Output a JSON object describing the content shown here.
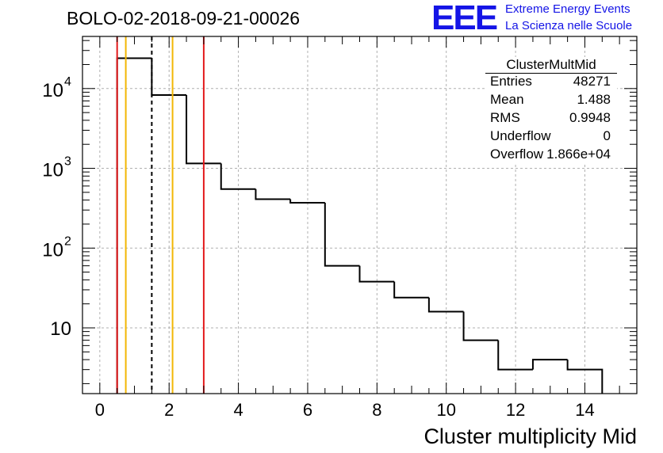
{
  "header": {
    "title": "BOLO-02-2018-09-21-00026",
    "logo_text": "EEE",
    "logo_line1": "Extreme Energy Events",
    "logo_line2": "La Scienza nelle Scuole"
  },
  "stats": {
    "title": "ClusterMultMid",
    "rows": [
      {
        "label": "Entries",
        "value": "48271"
      },
      {
        "label": "Mean",
        "value": "1.488"
      },
      {
        "label": "RMS",
        "value": "0.9948"
      },
      {
        "label": "Underflow",
        "value": "0"
      },
      {
        "label": "Overflow",
        "value": "1.866e+04"
      }
    ]
  },
  "colors": {
    "histogram": "#000000",
    "red_line": "#e31a1c",
    "orange_line": "#f2b705",
    "logo": "#1414e6",
    "grid": "#b0b0b0"
  },
  "chart_data": {
    "type": "histogram",
    "xlabel": "Cluster multiplicity Mid",
    "ylabel": "",
    "xlim": [
      -0.5,
      15.5
    ],
    "ylim": [
      1.5,
      45000
    ],
    "yscale": "log",
    "grid": true,
    "x_ticks": [
      0,
      2,
      4,
      6,
      8,
      10,
      12,
      14
    ],
    "y_ticks": [
      {
        "value": 10,
        "label": "10"
      },
      {
        "value": 100,
        "label": "10",
        "exp": "2"
      },
      {
        "value": 1000,
        "label": "10",
        "exp": "3"
      },
      {
        "value": 10000,
        "label": "10",
        "exp": "4"
      }
    ],
    "bins": [
      {
        "x0": 0.5,
        "x1": 1.5,
        "y": 24000
      },
      {
        "x0": 1.5,
        "x1": 2.5,
        "y": 8300
      },
      {
        "x0": 2.5,
        "x1": 3.5,
        "y": 1150
      },
      {
        "x0": 3.5,
        "x1": 4.5,
        "y": 550
      },
      {
        "x0": 4.5,
        "x1": 5.5,
        "y": 410
      },
      {
        "x0": 5.5,
        "x1": 6.5,
        "y": 370
      },
      {
        "x0": 6.5,
        "x1": 7.5,
        "y": 60
      },
      {
        "x0": 7.5,
        "x1": 8.5,
        "y": 38
      },
      {
        "x0": 8.5,
        "x1": 9.5,
        "y": 24
      },
      {
        "x0": 9.5,
        "x1": 10.5,
        "y": 16
      },
      {
        "x0": 10.5,
        "x1": 11.5,
        "y": 7
      },
      {
        "x0": 11.5,
        "x1": 12.5,
        "y": 3
      },
      {
        "x0": 12.5,
        "x1": 13.5,
        "y": 4
      },
      {
        "x0": 13.5,
        "x1": 14.5,
        "y": 3
      }
    ],
    "vertical_lines": [
      {
        "x": 0.5,
        "color": "red",
        "style": "solid"
      },
      {
        "x": 0.75,
        "color": "orange",
        "style": "solid"
      },
      {
        "x": 1.5,
        "color": "black",
        "style": "dashed"
      },
      {
        "x": 2.1,
        "color": "orange",
        "style": "solid"
      },
      {
        "x": 3.0,
        "color": "red",
        "style": "solid"
      }
    ]
  }
}
